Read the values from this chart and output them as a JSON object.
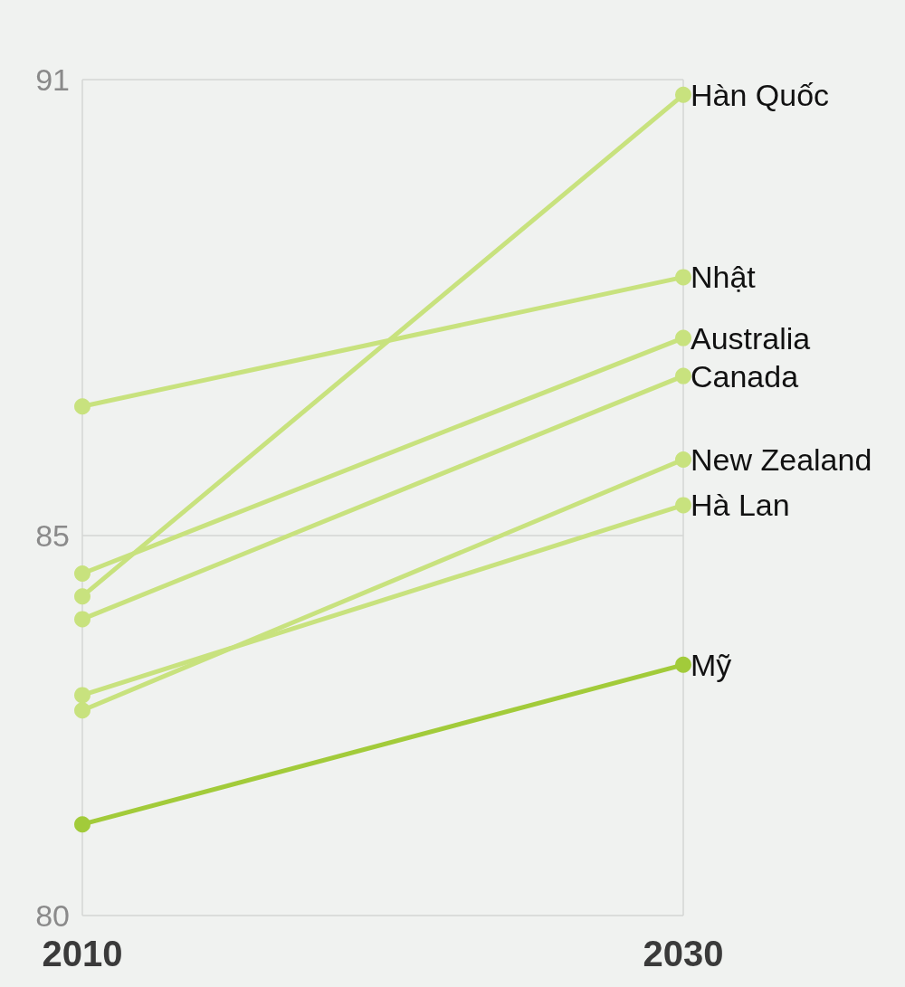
{
  "chart_data": {
    "type": "line",
    "x": [
      2010,
      2030
    ],
    "series": [
      {
        "name": "Hàn Quốc",
        "color": "#c8e27e",
        "values": [
          84.2,
          90.8
        ]
      },
      {
        "name": "Nhật",
        "color": "#c8e27e",
        "values": [
          86.7,
          88.4
        ]
      },
      {
        "name": "Australia",
        "color": "#c8e27e",
        "values": [
          84.5,
          87.6
        ]
      },
      {
        "name": "Canada",
        "color": "#c8e27e",
        "values": [
          83.9,
          87.1
        ]
      },
      {
        "name": "New Zealand",
        "color": "#c8e27e",
        "values": [
          82.7,
          86.0
        ]
      },
      {
        "name": "Hà Lan",
        "color": "#c8e27e",
        "values": [
          82.9,
          85.4
        ]
      },
      {
        "name": "Mỹ",
        "color": "#a2cb3a",
        "values": [
          81.2,
          83.3
        ]
      }
    ],
    "xlim": [
      2010,
      2030
    ],
    "xticks": [
      2010,
      2030
    ],
    "ylim": [
      80,
      91
    ],
    "yticks": [
      80,
      85,
      91
    ],
    "grid": true,
    "legend": false,
    "marker": "circle",
    "line_style": "solid"
  }
}
